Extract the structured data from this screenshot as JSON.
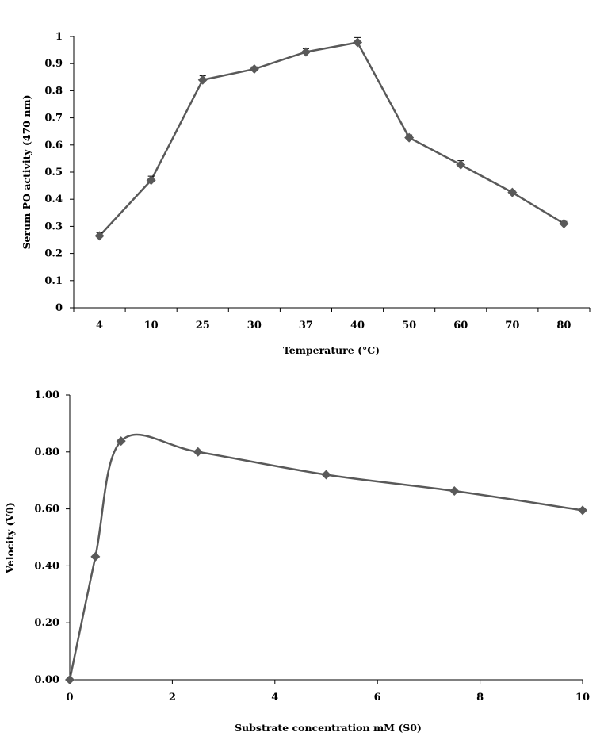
{
  "chart_data": [
    {
      "type": "line",
      "title": "",
      "xlabel": "Temperature (°C)",
      "ylabel": "Serum PO activity (470 nm)",
      "categories": [
        "4",
        "10",
        "25",
        "30",
        "37",
        "40",
        "50",
        "60",
        "70",
        "80"
      ],
      "series": [
        {
          "values": [
            0.265,
            0.47,
            0.84,
            0.88,
            0.943,
            0.978,
            0.627,
            0.527,
            0.425,
            0.31
          ],
          "errors": [
            0.012,
            0.015,
            0.015,
            0.008,
            0.012,
            0.018,
            0.01,
            0.015,
            0.008,
            0.008
          ]
        }
      ],
      "ylim": [
        0,
        1
      ],
      "yticks": [
        "0",
        "0.1",
        "0.2",
        "0.3",
        "0.4",
        "0.5",
        "0.6",
        "0.7",
        "0.8",
        "0.9",
        "1"
      ],
      "grid": false,
      "legend": "none",
      "marker": "diamond",
      "color": "#595959"
    },
    {
      "type": "line",
      "title": "",
      "xlabel": "Substrate concentration mM (S0)",
      "ylabel": "Velocity (V0)",
      "series": [
        {
          "x": [
            0,
            0.5,
            1,
            2.5,
            5,
            7.5,
            10
          ],
          "values": [
            0.0,
            0.432,
            0.838,
            0.8,
            0.72,
            0.663,
            0.595
          ]
        }
      ],
      "xlim": [
        0,
        10
      ],
      "ylim": [
        0,
        1
      ],
      "xticks": [
        "0",
        "2",
        "4",
        "6",
        "8",
        "10"
      ],
      "yticks": [
        "0.00",
        "0.20",
        "0.40",
        "0.60",
        "0.80",
        "1.00"
      ],
      "smooth": true,
      "grid": false,
      "legend": "none",
      "marker": "diamond",
      "color": "#595959"
    }
  ]
}
